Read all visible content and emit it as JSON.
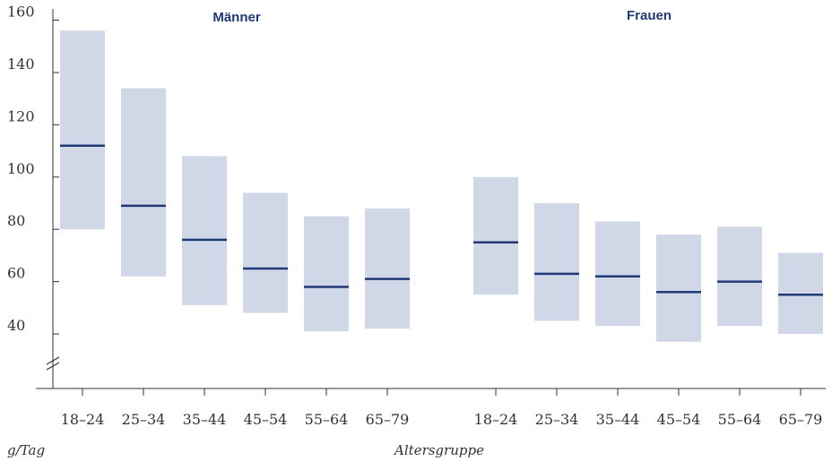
{
  "chart_data": {
    "type": "bar",
    "subtype": "floating-range-with-median",
    "ylabel": "g/Tag",
    "xlabel": "Altersgruppe",
    "ylim": [
      20,
      160
    ],
    "yticks": [
      40,
      60,
      80,
      100,
      120,
      140,
      160
    ],
    "y_axis_break": true,
    "grid": false,
    "colors": {
      "range": "#d0d8e8",
      "median": "#1f3a78",
      "title": "#1f3a78"
    },
    "panels": [
      {
        "title": "Männer",
        "categories": [
          "18–24",
          "25–34",
          "35–44",
          "45–54",
          "55–64",
          "65–79"
        ],
        "low": [
          80,
          62,
          51,
          48,
          41,
          42
        ],
        "high": [
          156,
          134,
          108,
          94,
          85,
          88
        ],
        "median": [
          112,
          89,
          76,
          65,
          58,
          61
        ]
      },
      {
        "title": "Frauen",
        "categories": [
          "18–24",
          "25–34",
          "35–44",
          "45–54",
          "55–64",
          "65–79"
        ],
        "low": [
          55,
          45,
          43,
          37,
          43,
          40
        ],
        "high": [
          100,
          90,
          83,
          78,
          81,
          71
        ],
        "median": [
          75,
          63,
          62,
          56,
          60,
          55
        ]
      }
    ]
  }
}
